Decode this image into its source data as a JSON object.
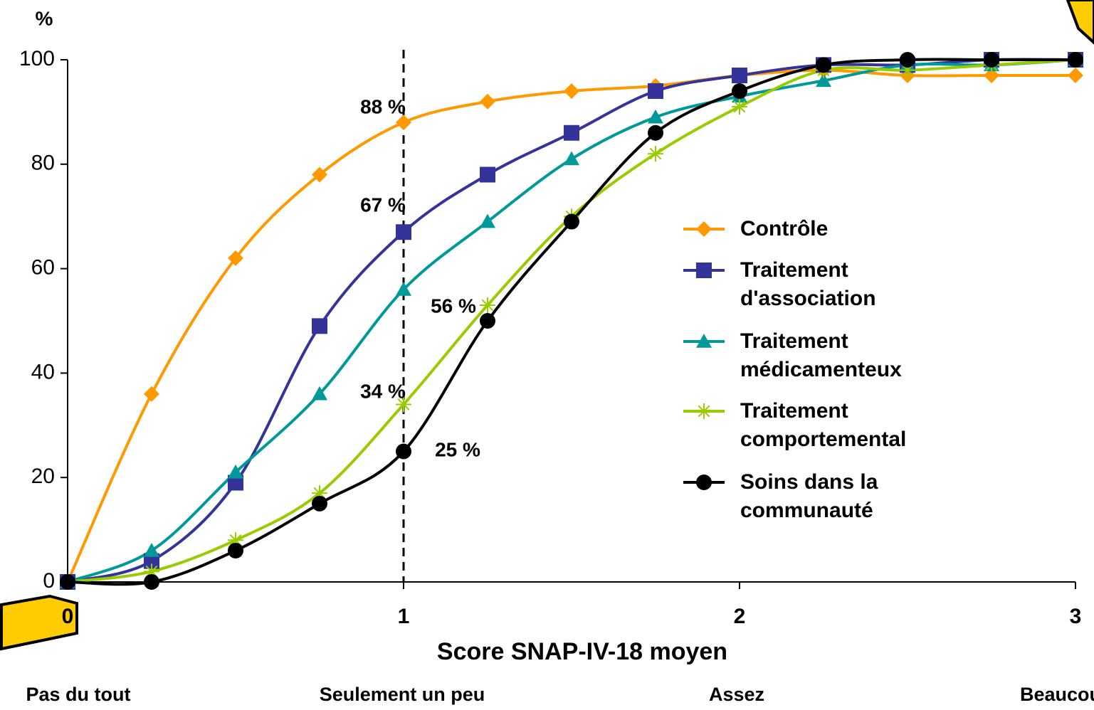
{
  "chart_data": {
    "type": "line",
    "y_label": "%",
    "x_label": "Score SNAP-IV-18  moyen",
    "x": [
      0,
      0.25,
      0.5,
      0.75,
      1,
      1.25,
      1.5,
      1.75,
      2,
      2.25,
      2.5,
      2.75,
      3
    ],
    "xlim": [
      0,
      3
    ],
    "xticks": [
      0,
      1,
      2,
      3
    ],
    "ylim": [
      0,
      100
    ],
    "yticks": [
      0,
      20,
      40,
      60,
      80,
      100
    ],
    "reference_line_x": 1,
    "series": [
      {
        "name": "Contrôle",
        "color": "#ff9900",
        "marker": "diamond",
        "values": [
          0,
          36,
          62,
          78,
          88,
          92,
          94,
          95,
          97,
          98,
          97,
          97,
          97
        ]
      },
      {
        "name": "Traitement d'association",
        "color": "#333399",
        "marker": "square",
        "values": [
          0,
          4,
          19,
          49,
          67,
          78,
          86,
          94,
          97,
          99,
          99,
          100,
          100
        ]
      },
      {
        "name": "Traitement médicamenteux",
        "color": "#009999",
        "marker": "triangle",
        "values": [
          0,
          6,
          21,
          36,
          56,
          69,
          81,
          89,
          93,
          96,
          99,
          99,
          100
        ]
      },
      {
        "name": "Traitement comportemental",
        "color": "#99cc00",
        "marker": "asterisk",
        "values": [
          0,
          2,
          8,
          17,
          34,
          53,
          70,
          82,
          91,
          98,
          98,
          99,
          100
        ]
      },
      {
        "name": "Soins dans la communauté",
        "color": "#000000",
        "marker": "circle",
        "values": [
          0,
          0,
          6,
          15,
          25,
          50,
          69,
          86,
          94,
          99,
          100,
          100,
          100
        ]
      }
    ],
    "annotations": [
      "88 %",
      "67 %",
      "56 %",
      "34 %",
      "25 %"
    ],
    "scale_labels": [
      "Pas du tout",
      "Seulement un peu",
      "Assez",
      "Beaucoup"
    ]
  }
}
